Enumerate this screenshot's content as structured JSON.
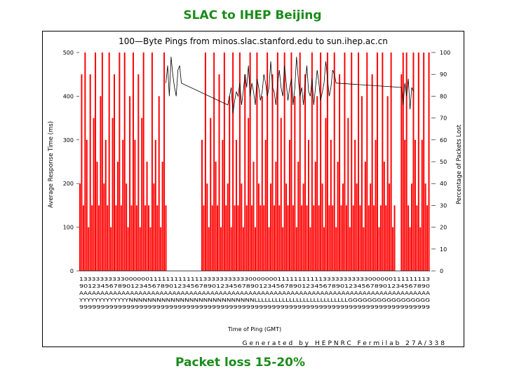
{
  "slide": {
    "title": "SLAC to IHEP Beijing",
    "caption": "Packet loss 15-20%"
  },
  "colors": {
    "accent": "#1a8c1a",
    "loss": "#ff0000",
    "response": "#000000"
  },
  "chart_data": {
    "type": "bar",
    "title": "100—Byte Pings from minos.slac.stanford.edu to sun.ihep.ac.cn",
    "ylabel": "Average Response Time (ms)",
    "y2label": "Percentage of Packets Lost",
    "xlabel": "Time of Ping (GMT)",
    "ylim": [
      0,
      500
    ],
    "y2lim": [
      0,
      100
    ],
    "yticks": [
      0,
      100,
      200,
      300,
      400,
      500
    ],
    "y2ticks": [
      0,
      10,
      20,
      30,
      40,
      50,
      60,
      70,
      80,
      90,
      100
    ],
    "footer": "Generated by HEPNRC Fermilab 27A/338",
    "x_tick_rows": [
      "1333333333300000011111111111113333333333300000001111111111133333333333000000111111113",
      "9012345678901234567890123456789012345678901234567890123456789012345678901234567890",
      "AAAAAAAAAAAAAAAAAAAAAAAAAAAAAAAAAAAAAAAAAAAAAAAAAAAAAAAAAAAAAAAAAAAAAAAAAAAAAAAAAAA",
      "YYYYYYYYYYYYYNNNNNNNNNNNNNNNNNNNNNNNNNNNLLLLLLLLLLLLLLLLLLLLLLLLLLLGGGGGGGGGGGGGGGGG",
      "9999999999999999999999999999999999999999999999999999999999999999999999999999999999"
    ],
    "series": [
      {
        "name": "Percentage of Packets Lost",
        "axis": "right",
        "values": [
          40,
          90,
          30,
          100,
          60,
          20,
          90,
          30,
          70,
          100,
          50,
          30,
          80,
          100,
          40,
          60,
          30,
          100,
          20,
          70,
          90,
          30,
          50,
          100,
          30,
          60,
          100,
          40,
          20,
          80,
          30,
          100,
          60,
          30,
          90,
          20,
          70,
          100,
          30,
          50,
          30,
          20,
          100,
          40,
          60,
          30,
          80,
          20,
          50,
          100,
          30,
          0,
          0,
          0,
          0,
          0,
          0,
          0,
          0,
          0,
          0,
          0,
          0,
          0,
          0,
          0,
          0,
          0,
          0,
          0,
          0,
          60,
          30,
          100,
          40,
          20,
          70,
          30,
          100,
          50,
          30,
          90,
          20,
          60,
          100,
          30,
          40,
          80,
          20,
          100,
          30,
          60,
          30,
          100,
          40,
          20,
          90,
          30,
          70,
          100,
          30,
          50,
          20,
          100,
          40,
          30,
          80,
          30,
          60,
          100,
          20,
          40,
          90,
          30,
          50,
          100,
          30,
          70,
          20,
          100,
          40,
          30,
          60,
          100,
          30,
          80,
          20,
          50,
          100,
          30,
          40,
          90,
          30,
          60,
          20,
          100,
          30,
          50,
          80,
          30,
          100,
          40,
          20,
          70,
          100,
          30,
          60,
          30,
          100,
          20,
          50,
          90,
          30,
          40,
          100,
          30,
          70,
          20,
          100,
          30,
          60,
          40,
          100,
          30,
          80,
          20,
          50,
          100,
          30,
          40,
          90,
          30,
          60,
          100,
          20,
          30,
          100,
          50,
          30,
          80,
          40,
          100,
          20,
          30,
          0,
          0,
          0,
          90,
          100,
          60,
          100,
          30,
          20,
          40,
          100,
          60,
          30,
          100,
          20,
          60,
          100,
          40,
          30,
          100
        ]
      },
      {
        "name": "Average Response Time (ms)",
        "axis": "left",
        "values": [
          null,
          null,
          null,
          null,
          null,
          null,
          null,
          null,
          null,
          null,
          null,
          null,
          null,
          null,
          null,
          null,
          null,
          null,
          null,
          null,
          null,
          null,
          null,
          null,
          null,
          null,
          null,
          null,
          null,
          null,
          null,
          null,
          null,
          null,
          null,
          null,
          null,
          null,
          null,
          null,
          null,
          null,
          null,
          null,
          null,
          null,
          null,
          null,
          null,
          null,
          430,
          470,
          400,
          490,
          450,
          420,
          400,
          460,
          470,
          430,
          null,
          null,
          null,
          null,
          null,
          null,
          null,
          null,
          null,
          null,
          null,
          null,
          null,
          null,
          null,
          null,
          null,
          null,
          null,
          null,
          null,
          null,
          null,
          null,
          null,
          null,
          380,
          400,
          420,
          360,
          390,
          410,
          400,
          430,
          380,
          410,
          450,
          420,
          470,
          400,
          430,
          410,
          380,
          440,
          420,
          390,
          410,
          450,
          430,
          400,
          420,
          480,
          420,
          410,
          380,
          430,
          460,
          420,
          400,
          470,
          430,
          390,
          420,
          440,
          380,
          420,
          490,
          440,
          400,
          420,
          380,
          430,
          470,
          410,
          400,
          440,
          380,
          420,
          460,
          430,
          390,
          410,
          430,
          480,
          440,
          400,
          420,
          460,
          450,
          430,
          null,
          null,
          null,
          null,
          null,
          null,
          null,
          null,
          null,
          null,
          null,
          null,
          null,
          null,
          null,
          null,
          null,
          null,
          null,
          null,
          null,
          null,
          null,
          null,
          null,
          null,
          null,
          null,
          null,
          null,
          null,
          null,
          null,
          null,
          null,
          null,
          null,
          420,
          380,
          430,
          400,
          440,
          370,
          420,
          410
        ]
      }
    ]
  }
}
